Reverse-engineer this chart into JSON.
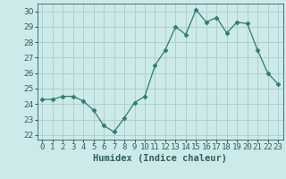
{
  "x": [
    0,
    1,
    2,
    3,
    4,
    5,
    6,
    7,
    8,
    9,
    10,
    11,
    12,
    13,
    14,
    15,
    16,
    17,
    18,
    19,
    20,
    21,
    22,
    23
  ],
  "y": [
    24.3,
    24.3,
    24.5,
    24.5,
    24.2,
    23.6,
    22.6,
    22.2,
    23.1,
    24.1,
    24.5,
    26.5,
    27.5,
    29.0,
    28.5,
    30.1,
    29.3,
    29.6,
    28.6,
    29.3,
    29.2,
    27.5,
    26.0,
    25.3
  ],
  "line_color": "#2e7d6e",
  "marker": "D",
  "marker_size": 2.5,
  "bg_color": "#cceae7",
  "grid_color": "#aaccc8",
  "xlabel": "Humidex (Indice chaleur)",
  "ylim": [
    21.7,
    30.5
  ],
  "yticks": [
    22,
    23,
    24,
    25,
    26,
    27,
    28,
    29,
    30
  ],
  "xlim": [
    -0.5,
    23.5
  ],
  "xticks": [
    0,
    1,
    2,
    3,
    4,
    5,
    6,
    7,
    8,
    9,
    10,
    11,
    12,
    13,
    14,
    15,
    16,
    17,
    18,
    19,
    20,
    21,
    22,
    23
  ],
  "xtick_labels": [
    "0",
    "1",
    "2",
    "3",
    "4",
    "5",
    "6",
    "7",
    "8",
    "9",
    "10",
    "11",
    "12",
    "13",
    "14",
    "15",
    "16",
    "17",
    "18",
    "19",
    "20",
    "21",
    "22",
    "23"
  ],
  "xlabel_fontsize": 7.5,
  "tick_fontsize": 6.5
}
